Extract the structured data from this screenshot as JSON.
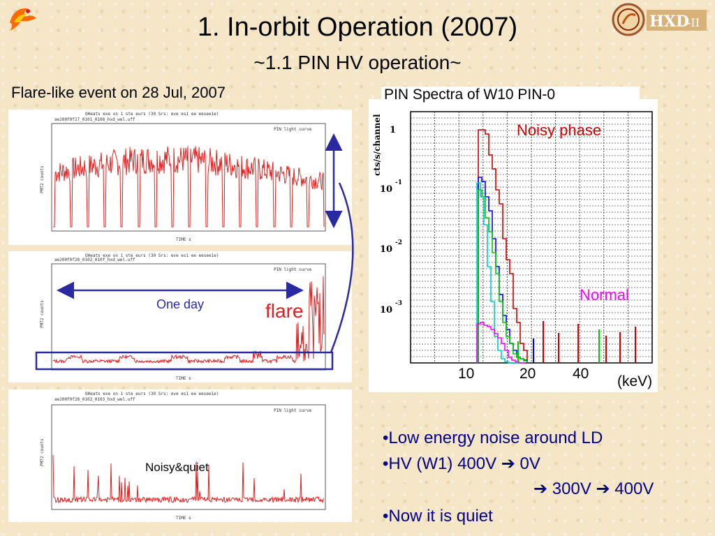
{
  "title": "1.   In-orbit Operation (2007)",
  "subtitle": "~1.1 PIN HV operation~",
  "flare_heading": "Flare-like event on 28 Jul, 2007",
  "annotations": {
    "one_day": "One day",
    "flare": "flare",
    "noisy_quiet": "Noisy&quiet"
  },
  "spectrum": {
    "title": "PIN Spectra of W10 PIN-0",
    "ylabel": "cts/s/channel",
    "noisy_label": "Noisy phase",
    "normal_label": "Normal",
    "xunit": "(keV)",
    "xticks": [
      "10",
      "20",
      "40"
    ],
    "yticks": [
      {
        "base": "1",
        "exp": ""
      },
      {
        "base": "10",
        "exp": "-1"
      },
      {
        "base": "10",
        "exp": "-2"
      },
      {
        "base": "10",
        "exp": "-3"
      }
    ]
  },
  "bullets": {
    "b1": "•Low energy noise around LD",
    "b2_pre": "•HV (W1) 400V ",
    "b2_post": " 0V",
    "b3_a": " 300V ",
    "b3_b": " 400V",
    "b4": "•Now it is quiet"
  },
  "colors": {
    "lightcurve": "#e02020",
    "noisy": "#cc0000",
    "normal": "#ff00ff",
    "bullet_text": "#00008b",
    "arrow": "#2a2aa0"
  }
}
